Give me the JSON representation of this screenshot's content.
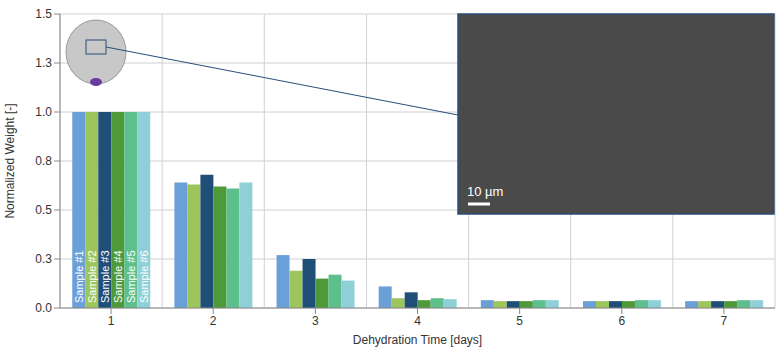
{
  "chart_data": {
    "type": "bar",
    "x_label": "Dehydration Time [days]",
    "y_label": "Normalized Weight [-]",
    "categories": [
      "1",
      "2",
      "3",
      "4",
      "5",
      "6",
      "7"
    ],
    "series": [
      {
        "name": "Sample #1",
        "color": "#6a9fd8",
        "values": [
          1.0,
          0.64,
          0.27,
          0.11,
          0.04,
          0.035,
          0.035
        ]
      },
      {
        "name": "Sample #2",
        "color": "#9cc55c",
        "values": [
          1.0,
          0.63,
          0.19,
          0.05,
          0.035,
          0.035,
          0.035
        ]
      },
      {
        "name": "Sample #3",
        "color": "#1f4e79",
        "values": [
          1.0,
          0.68,
          0.25,
          0.08,
          0.035,
          0.035,
          0.035
        ]
      },
      {
        "name": "Sample #4",
        "color": "#4e9a3a",
        "values": [
          1.0,
          0.62,
          0.15,
          0.04,
          0.035,
          0.035,
          0.035
        ]
      },
      {
        "name": "Sample #5",
        "color": "#5cbf8c",
        "values": [
          1.0,
          0.61,
          0.17,
          0.05,
          0.04,
          0.04,
          0.04
        ]
      },
      {
        "name": "Sample #6",
        "color": "#8fd0d8",
        "values": [
          1.0,
          0.64,
          0.14,
          0.045,
          0.04,
          0.04,
          0.04
        ]
      }
    ],
    "ylim": [
      0,
      1.5
    ],
    "yticks": [
      {
        "value": 0,
        "label": "0.0"
      },
      {
        "value": 0.25,
        "label": "0.3"
      },
      {
        "value": 0.5,
        "label": "0.5"
      },
      {
        "value": 0.75,
        "label": "0.8"
      },
      {
        "value": 1.0,
        "label": "1.0"
      },
      {
        "value": 1.25,
        "label": "1.3"
      },
      {
        "value": 1.5,
        "label": "1.5"
      }
    ],
    "grid": true,
    "annotations": [
      "10 µm"
    ]
  }
}
